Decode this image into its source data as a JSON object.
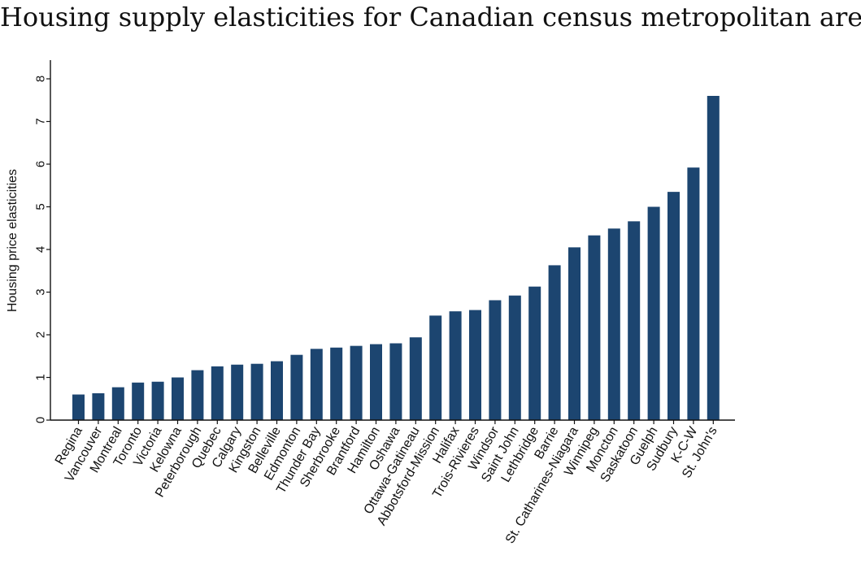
{
  "chart_data": {
    "type": "bar",
    "title": "Housing supply elasticities for Canadian census metropolitan areas",
    "xlabel": "",
    "ylabel": "Housing price elasticities",
    "ylim": [
      0,
      8.4
    ],
    "yticks": [
      0,
      1,
      2,
      3,
      4,
      5,
      6,
      7,
      8
    ],
    "grid": false,
    "bar_color": "#1c4570",
    "categories": [
      "Regina",
      "Vancouver",
      "Montreal",
      "Toronto",
      "Victoria",
      "Kelowna",
      "Peterborough",
      "Quebec",
      "Calgary",
      "Kingston",
      "Belleville",
      "Edmonton",
      "Thunder Bay",
      "Sherbrooke",
      "Brantford",
      "Hamilton",
      "Oshawa",
      "Ottawa-Gatineau",
      "Abbotsford-Mission",
      "Halifax",
      "Trois-Rivieres",
      "Windsor",
      "Saint John",
      "Lethbridge",
      "Barrie",
      "St. Catharines-Niagara",
      "Winnipeg",
      "Moncton",
      "Saskatoon",
      "Guelph",
      "Sudbury",
      "K-C-W",
      "St. John's"
    ],
    "values": [
      0.6,
      0.63,
      0.77,
      0.88,
      0.9,
      1.0,
      1.17,
      1.26,
      1.3,
      1.32,
      1.38,
      1.53,
      1.67,
      1.7,
      1.74,
      1.78,
      1.8,
      1.94,
      2.45,
      2.55,
      2.58,
      2.81,
      2.92,
      3.13,
      3.63,
      4.05,
      4.33,
      4.49,
      4.66,
      5.0,
      5.35,
      5.92,
      7.6
    ]
  }
}
